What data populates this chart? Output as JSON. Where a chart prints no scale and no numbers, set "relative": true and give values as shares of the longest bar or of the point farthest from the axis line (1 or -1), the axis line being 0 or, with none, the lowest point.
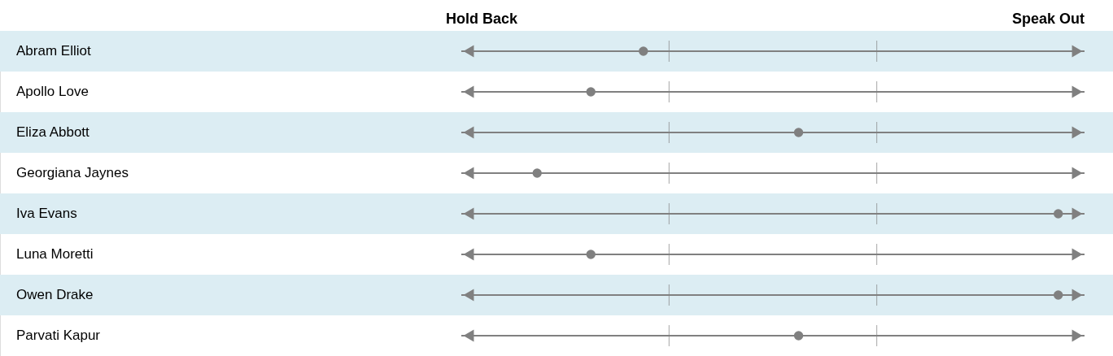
{
  "chart_data": {
    "type": "scatter",
    "orientation": "horizontal",
    "relative": true,
    "categories": [
      "Abram Elliot",
      "Apollo Love",
      "Eliza Abbott",
      "Georgiana Jaynes",
      "Iva Evans",
      "Luna Moretti",
      "Owen Drake",
      "Parvati Kapur"
    ],
    "series": [
      {
        "color": "#808080",
        "values": [
          0.305,
          0.217,
          0.565,
          0.127,
          1,
          0.217,
          1,
          0.565
        ]
      }
    ],
    "marker": "circle",
    "grid": true,
    "annotations": [
      "Hold Back",
      "Speak Out"
    ]
  }
}
